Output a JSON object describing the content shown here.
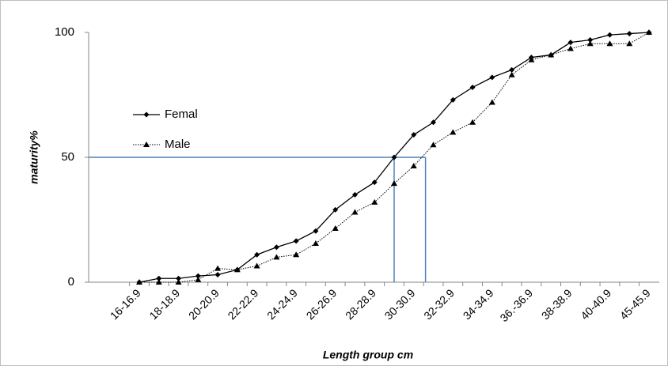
{
  "chart_data": {
    "type": "line",
    "xlabel": "Length group cm",
    "ylabel": "maturity%",
    "categories": [
      "16-16.9",
      null,
      "18-18.9",
      null,
      "20-20.9",
      null,
      "22-22.9",
      null,
      "24-24.9",
      null,
      "26-26.9",
      null,
      "28-28.9",
      null,
      "30-30.9",
      null,
      "32-32.9",
      null,
      "34-34.9",
      null,
      "36.-36.9",
      null,
      "38-38.9",
      null,
      "40-40.9",
      null,
      "45-45.9"
    ],
    "series": [
      {
        "name": "Femal",
        "color": "#000000",
        "dash": "solid",
        "marker": "diamond",
        "values": [
          0,
          1.5,
          1.5,
          2.5,
          3,
          5,
          11,
          14,
          16.5,
          20.5,
          29,
          35,
          40,
          50,
          59,
          64,
          73,
          78,
          82,
          85,
          90,
          91,
          96,
          97,
          99,
          99.5,
          100
        ]
      },
      {
        "name": "Male",
        "color": "#000000",
        "dash": "dotted",
        "marker": "triangle",
        "values": [
          0,
          0,
          0,
          1,
          5.5,
          5,
          6.5,
          10,
          11,
          15.5,
          21.5,
          28,
          32,
          39.5,
          46.5,
          55,
          60,
          64,
          72,
          83,
          89,
          91,
          93.5,
          95.5,
          95.5,
          95.5,
          100
        ]
      }
    ],
    "reference_lines": {
      "color": "#4f81bd",
      "y": 50,
      "x_index": [
        13,
        14.6
      ]
    },
    "ylim": [
      0,
      100
    ],
    "yticks": [
      0,
      50,
      100
    ],
    "grid": false
  }
}
